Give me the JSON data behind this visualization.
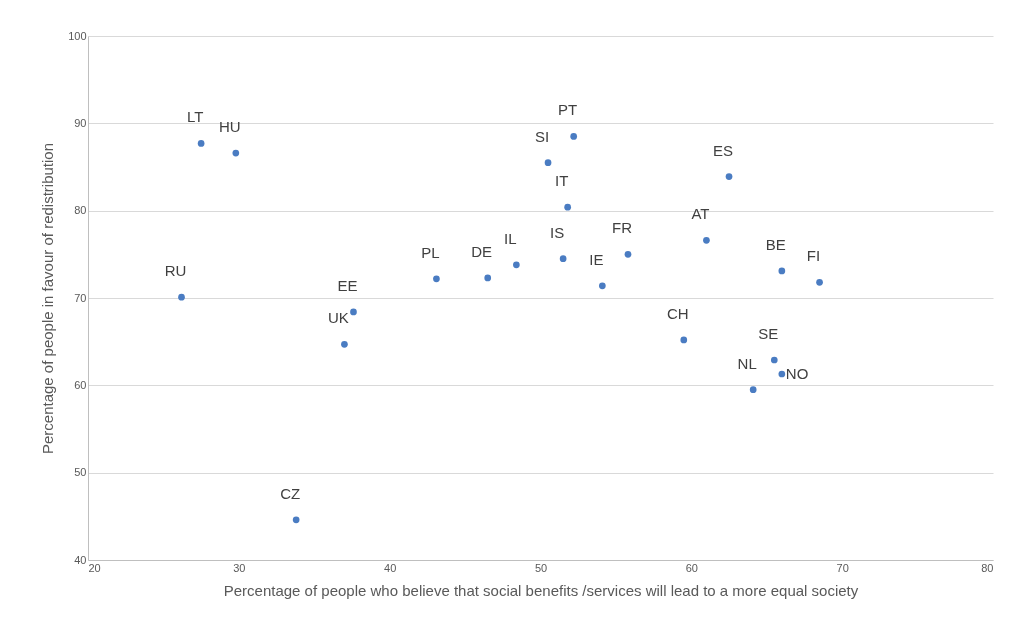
{
  "chart_data": {
    "type": "scatter",
    "xlabel": "Percentage of people who believe that social benefits /services will lead to a more equal society",
    "ylabel": "Percentage of people in favour of redistribution",
    "xlim": [
      20,
      80
    ],
    "ylim": [
      40,
      100
    ],
    "xticks": [
      20,
      30,
      40,
      50,
      60,
      70,
      80
    ],
    "yticks": [
      40,
      50,
      60,
      70,
      80,
      90,
      100
    ],
    "grid": "y",
    "marker": "circle",
    "series": [
      {
        "color": "#4a7cc2",
        "x": [
          27.5,
          29.8,
          26.2,
          37.6,
          37.0,
          33.8,
          43.1,
          46.5,
          48.4,
          51.5,
          50.5,
          52.2,
          51.8,
          54.1,
          55.8,
          59.5,
          61.0,
          62.5,
          66.0,
          68.5,
          65.5,
          64.1,
          66.0
        ],
        "values": [
          87.7,
          86.6,
          70.1,
          68.4,
          64.7,
          44.6,
          72.2,
          72.3,
          73.8,
          74.5,
          85.5,
          88.5,
          80.4,
          71.4,
          75.0,
          65.2,
          76.6,
          83.9,
          73.1,
          71.8,
          62.9,
          59.5,
          61.3
        ]
      }
    ],
    "annotations": [
      {
        "text": "LT",
        "x": 27.5,
        "y": 87.7
      },
      {
        "text": "HU",
        "x": 29.8,
        "y": 86.6
      },
      {
        "text": "RU",
        "x": 26.2,
        "y": 70.1
      },
      {
        "text": "EE",
        "x": 37.6,
        "y": 68.4
      },
      {
        "text": "UK",
        "x": 37.0,
        "y": 64.7
      },
      {
        "text": "CZ",
        "x": 33.8,
        "y": 44.6
      },
      {
        "text": "PL",
        "x": 43.1,
        "y": 72.2
      },
      {
        "text": "DE",
        "x": 46.5,
        "y": 72.3
      },
      {
        "text": "IL",
        "x": 48.4,
        "y": 73.8
      },
      {
        "text": "IS",
        "x": 51.5,
        "y": 74.5
      },
      {
        "text": "SI",
        "x": 50.5,
        "y": 85.5
      },
      {
        "text": "PT",
        "x": 52.2,
        "y": 88.5
      },
      {
        "text": "IT",
        "x": 51.8,
        "y": 80.4
      },
      {
        "text": "IE",
        "x": 54.1,
        "y": 71.4
      },
      {
        "text": "FR",
        "x": 55.8,
        "y": 75.0
      },
      {
        "text": "CH",
        "x": 59.5,
        "y": 65.2
      },
      {
        "text": "AT",
        "x": 61.0,
        "y": 76.6
      },
      {
        "text": "ES",
        "x": 62.5,
        "y": 83.9
      },
      {
        "text": "BE",
        "x": 66.0,
        "y": 73.1
      },
      {
        "text": "FI",
        "x": 68.5,
        "y": 71.8
      },
      {
        "text": "SE",
        "x": 65.5,
        "y": 62.9
      },
      {
        "text": "NL",
        "x": 64.1,
        "y": 59.5
      },
      {
        "text": "NO",
        "x": 66.0,
        "y": 61.3
      }
    ]
  }
}
